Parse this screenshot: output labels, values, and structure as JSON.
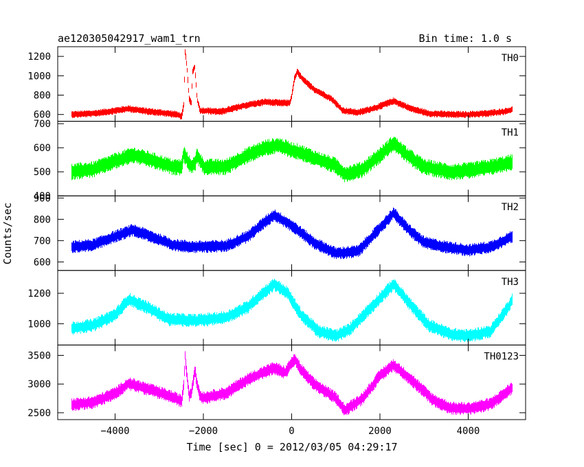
{
  "chart_data": {
    "type": "line",
    "title": "ae120305042917_wam1_trn",
    "subtitle": "Bin time: 1.0 s",
    "xlabel": "Time [sec] 0 = 2012/03/05 04:29:17",
    "ylabel": "Counts/sec",
    "xlim": [
      -5300,
      5300
    ],
    "xticks": [
      -4000,
      -2000,
      0,
      2000,
      4000
    ],
    "xtick_labels": [
      "−4000",
      "−2000",
      "0",
      "2000",
      "4000"
    ],
    "grid": false,
    "panels": [
      {
        "name": "TH0",
        "color": "#ff0000",
        "ylim": [
          530,
          1300
        ],
        "noise": 75,
        "yticks": [
          600,
          800,
          1000,
          1200
        ],
        "ytick_labels": [
          "600",
          "800",
          "1000",
          "1200"
        ],
        "x": [
          -5000,
          -4500,
          -4000,
          -3700,
          -3400,
          -3000,
          -2600,
          -2500,
          -2450,
          -2420,
          -2380,
          -2330,
          -2280,
          -2250,
          -2200,
          -2150,
          -2080,
          -2000,
          -1600,
          -1000,
          -600,
          -300,
          -50,
          0,
          50,
          120,
          250,
          500,
          900,
          1150,
          1500,
          1900,
          2300,
          2700,
          3100,
          3600,
          4000,
          4400,
          4800,
          5000
        ],
        "y": [
          600,
          610,
          640,
          660,
          640,
          620,
          600,
          580,
          700,
          1250,
          1100,
          760,
          720,
          1050,
          1090,
          760,
          640,
          640,
          630,
          700,
          730,
          720,
          720,
          800,
          960,
          1040,
          960,
          860,
          760,
          640,
          620,
          670,
          740,
          660,
          610,
          600,
          600,
          610,
          630,
          650
        ]
      },
      {
        "name": "TH1",
        "color": "#00ff00",
        "ylim": [
          400,
          710
        ],
        "noise": 70,
        "yticks": [
          400,
          500,
          600,
          700
        ],
        "ytick_labels": [
          "400",
          "500",
          "600",
          "700"
        ],
        "x": [
          -5000,
          -4500,
          -4000,
          -3600,
          -3200,
          -2700,
          -2500,
          -2450,
          -2300,
          -2200,
          -2150,
          -2000,
          -1500,
          -1000,
          -600,
          -300,
          0,
          200,
          600,
          1000,
          1200,
          1600,
          2000,
          2300,
          2600,
          3000,
          3600,
          4000,
          4500,
          5000
        ],
        "y": [
          500,
          510,
          545,
          570,
          550,
          520,
          520,
          575,
          525,
          530,
          570,
          520,
          520,
          570,
          600,
          610,
          590,
          580,
          550,
          525,
          490,
          510,
          570,
          620,
          570,
          520,
          500,
          505,
          520,
          540
        ]
      },
      {
        "name": "TH2",
        "color": "#0000ff",
        "ylim": [
          560,
          910
        ],
        "noise": 60,
        "yticks": [
          600,
          700,
          800,
          900
        ],
        "ytick_labels": [
          "600",
          "700",
          "800",
          "900"
        ],
        "x": [
          -5000,
          -4500,
          -4000,
          -3600,
          -3200,
          -2700,
          -2200,
          -1500,
          -1000,
          -600,
          -400,
          0,
          500,
          1000,
          1500,
          2000,
          2300,
          2600,
          3000,
          3500,
          4000,
          4500,
          5000
        ],
        "y": [
          670,
          680,
          720,
          750,
          720,
          680,
          670,
          675,
          720,
          790,
          820,
          770,
          690,
          640,
          650,
          760,
          830,
          760,
          690,
          670,
          655,
          670,
          720
        ]
      },
      {
        "name": "TH3",
        "color": "#00ffff",
        "ylim": [
          860,
          1350
        ],
        "noise": 90,
        "yticks": [
          1000,
          1200
        ],
        "ytick_labels": [
          "1000",
          "1200"
        ],
        "x": [
          -5000,
          -4500,
          -4000,
          -3700,
          -3300,
          -2800,
          -2200,
          -1500,
          -1000,
          -700,
          -400,
          -100,
          200,
          600,
          1000,
          1300,
          1800,
          2300,
          2700,
          3100,
          3600,
          4000,
          4500,
          4900,
          5000
        ],
        "y": [
          970,
          990,
          1060,
          1160,
          1110,
          1030,
          1020,
          1040,
          1110,
          1190,
          1260,
          1200,
          1060,
          950,
          920,
          960,
          1110,
          1260,
          1120,
          990,
          930,
          920,
          950,
          1110,
          1170
        ]
      },
      {
        "name": "TH0123",
        "color": "#ff00ff",
        "ylim": [
          2380,
          3680
        ],
        "noise": 230,
        "yticks": [
          2500,
          3000,
          3500
        ],
        "ytick_labels": [
          "2500",
          "3000",
          "3500"
        ],
        "x": [
          -5000,
          -4500,
          -4000,
          -3700,
          -3300,
          -2800,
          -2550,
          -2500,
          -2450,
          -2420,
          -2380,
          -2330,
          -2280,
          -2250,
          -2200,
          -2150,
          -2080,
          -2000,
          -1500,
          -1000,
          -600,
          -400,
          -150,
          0,
          80,
          200,
          500,
          1000,
          1200,
          1600,
          2000,
          2300,
          2700,
          3200,
          3600,
          4000,
          4500,
          5000
        ],
        "y": [
          2640,
          2680,
          2840,
          3010,
          2920,
          2800,
          2720,
          2700,
          3000,
          3500,
          3150,
          2800,
          2850,
          3000,
          3250,
          3000,
          2790,
          2760,
          2840,
          3080,
          3220,
          3280,
          3200,
          3380,
          3420,
          3250,
          3000,
          2750,
          2540,
          2750,
          3150,
          3330,
          3080,
          2720,
          2580,
          2570,
          2650,
          2940
        ]
      }
    ]
  }
}
